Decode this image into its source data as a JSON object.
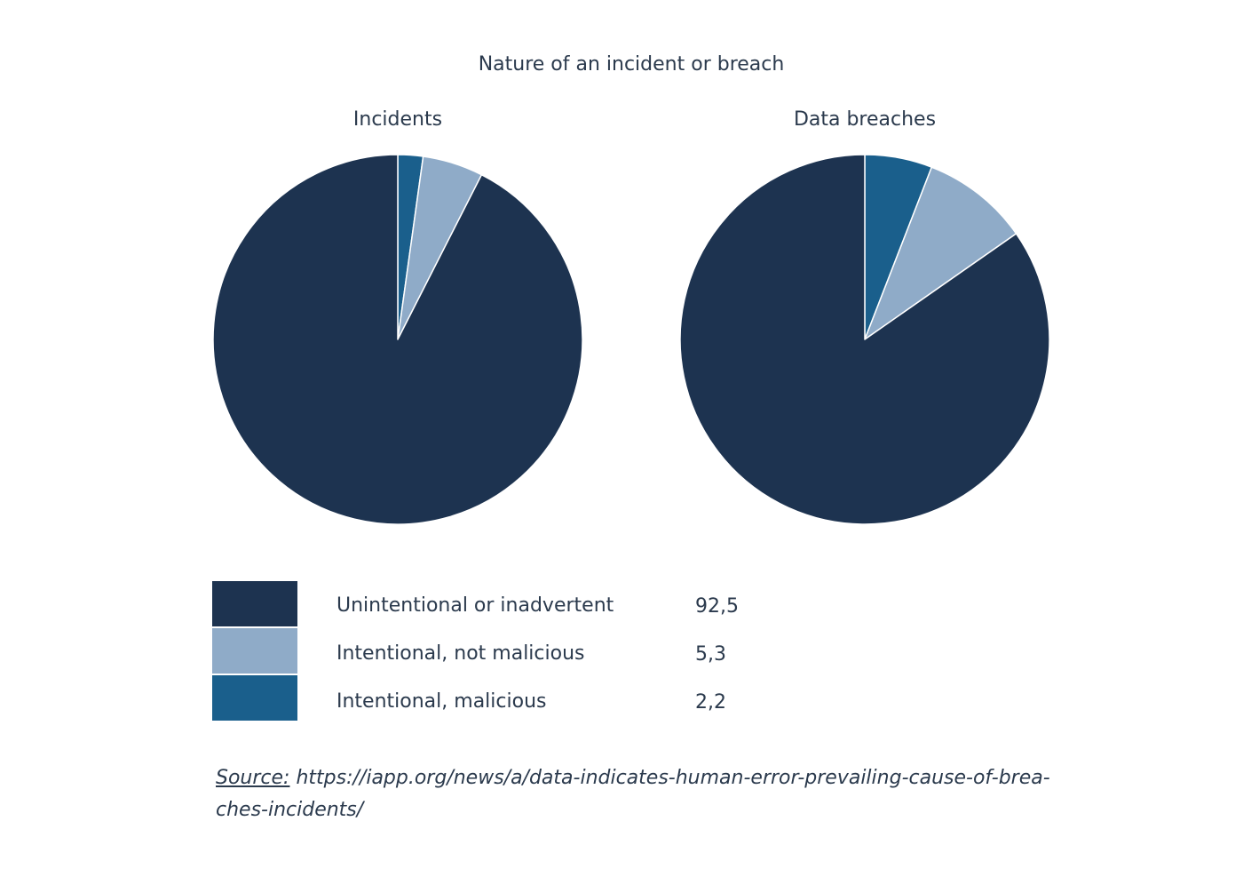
{
  "title": "Nature of an incident or breach",
  "chart_data": [
    {
      "type": "pie",
      "title": "Incidents",
      "categories": [
        "Unintentional or inadvertent",
        "Intentional, not malicious",
        "Intentional, malicious"
      ],
      "values": [
        92.5,
        5.3,
        2.2
      ]
    },
    {
      "type": "pie",
      "title": "Data breaches",
      "categories": [
        "Unintentional or inadvertent",
        "Intentional, not malicious",
        "Intentional, malicious"
      ],
      "values": [
        84.7,
        9.4,
        5.9
      ]
    }
  ],
  "colors": {
    "Unintentional or inadvertent": "#1d3350",
    "Intentional, not malicious": "#8fabc8",
    "Intentional, malicious": "#1a5f8c"
  },
  "legend": [
    {
      "label": "Unintentional or inadvertent",
      "value": "92,5"
    },
    {
      "label": "Intentional, not malicious",
      "value": "5,3"
    },
    {
      "label": "Intentional, malicious",
      "value": "2,2"
    }
  ],
  "source": {
    "label": "Source:",
    "url_line1": "https://iapp.org/news/a/data-indicates-human-error-prevailing-cause-of-brea-",
    "url_line2": "ches-incidents/"
  }
}
